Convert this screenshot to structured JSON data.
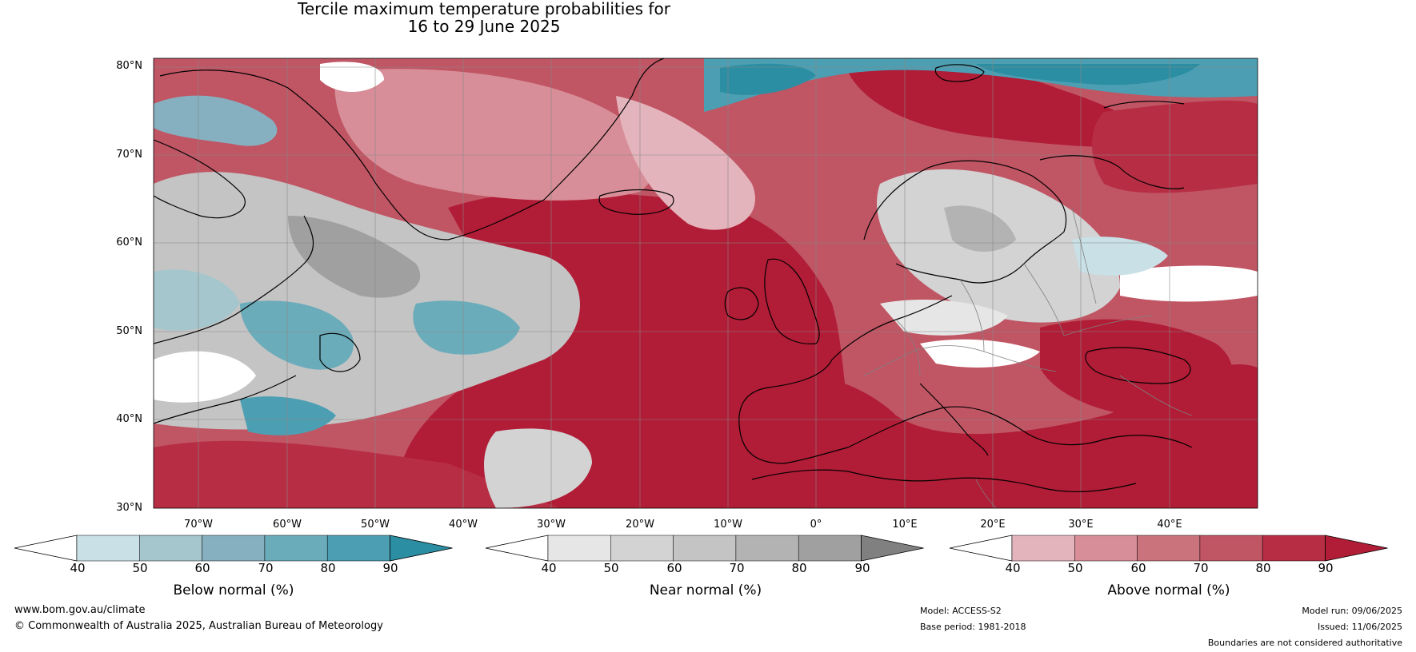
{
  "title": {
    "line1": "Tercile maximum temperature probabilities for",
    "line2": "16 to 29 June 2025"
  },
  "map": {
    "lat_labels": [
      "80°N",
      "70°N",
      "60°N",
      "50°N",
      "40°N",
      "30°N"
    ],
    "lon_labels": [
      "70°W",
      "60°W",
      "50°W",
      "40°W",
      "30°W",
      "20°W",
      "10°W",
      "0°",
      "10°E",
      "20°E",
      "30°E",
      "40°E"
    ],
    "colors": {
      "ocean_dominant": "#b11c36",
      "land_coast": "#000000",
      "borders": "#808080"
    }
  },
  "colorbars": [
    {
      "name": "below",
      "label": "Below normal (%)",
      "ticks": [
        "40",
        "50",
        "60",
        "70",
        "80",
        "90"
      ],
      "colors": [
        "#c8e0e6",
        "#a5c6cd",
        "#86b0bf",
        "#6bacba",
        "#4c9fb2",
        "#2b8ea3"
      ]
    },
    {
      "name": "near",
      "label": "Near normal (%)",
      "ticks": [
        "40",
        "50",
        "60",
        "70",
        "80",
        "90"
      ],
      "colors": [
        "#e6e6e6",
        "#d3d3d3",
        "#c4c4c4",
        "#b3b3b3",
        "#a0a0a0",
        "#808080"
      ]
    },
    {
      "name": "above",
      "label": "Above normal (%)",
      "ticks": [
        "40",
        "50",
        "60",
        "70",
        "80",
        "90"
      ],
      "colors": [
        "#e4b4bc",
        "#d88e98",
        "#cb737c",
        "#c05564",
        "#b72e44",
        "#b11c36"
      ]
    }
  ],
  "footer": {
    "website": "www.bom.gov.au/climate",
    "copyright": "© Commonwealth of Australia 2025, Australian Bureau of Meteorology",
    "model": "Model: ACCESS-S2",
    "base_period": "Base period: 1981-2018",
    "model_run": "Model run: 09/06/2025",
    "issued": "Issued: 11/06/2025",
    "disclaimer": "Boundaries are not considered authoritative"
  }
}
